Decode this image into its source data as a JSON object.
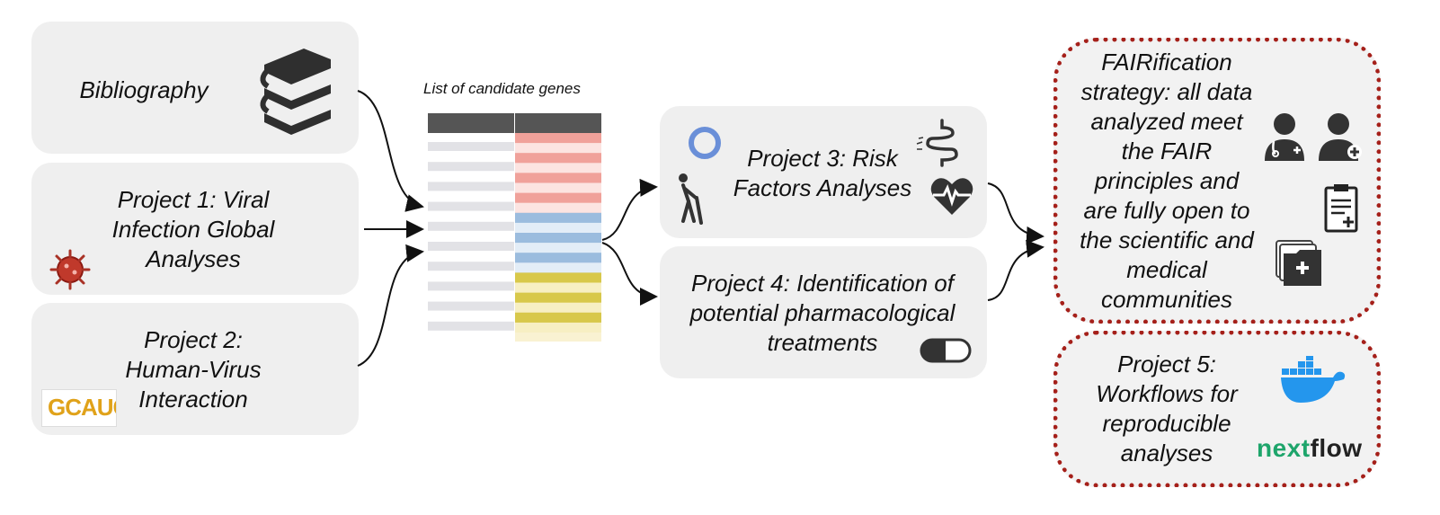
{
  "boxes": {
    "bibliography": "Bibliography",
    "project1": "Project 1: Viral\nInfection Global\nAnalyses",
    "project2": "Project 2:\nHuman-Virus\nInteraction",
    "project3": "Project 3: Risk\nFactors Analyses",
    "project4": "Project 4: Identification of\npotential pharmacological\ntreatments",
    "fair": "FAIRification\nstrategy: all data\nanalyzed meet\nthe FAIR\nprinciples and\nare fully open to\nthe scientific and\nmedical\ncommunities",
    "project5": "Project 5:\nWorkflows for\nreproducible\nanalyses"
  },
  "gene_list": {
    "caption": "List of candidate genes",
    "row_colors": [
      "#f0a19a",
      "#f0a19a",
      "#f0a19a",
      "#f0a19a",
      "#9bbcde",
      "#9bbcde",
      "#9bbcde",
      "#d8c84a",
      "#d8c84a",
      "#d8c84a"
    ]
  },
  "logos": {
    "sequence_logo": "GCAUG",
    "nextflow_prefix": "nex",
    "nextflow_x": "t",
    "nextflow_suffix": "flow"
  },
  "icons": [
    "books-icon",
    "virus-icon",
    "sequence-logo",
    "circle-icon",
    "elderly-person-icon",
    "intestine-icon",
    "heart-rate-icon",
    "pill-icon",
    "doctor-icon",
    "patient-icon",
    "clipboard-icon",
    "medical-folder-icon",
    "docker-icon",
    "nextflow-logo"
  ],
  "colors": {
    "box": "#efefef",
    "dotted_border": "#a5201a",
    "docker": "#2496ed",
    "nextflow": "#1ea56b"
  }
}
